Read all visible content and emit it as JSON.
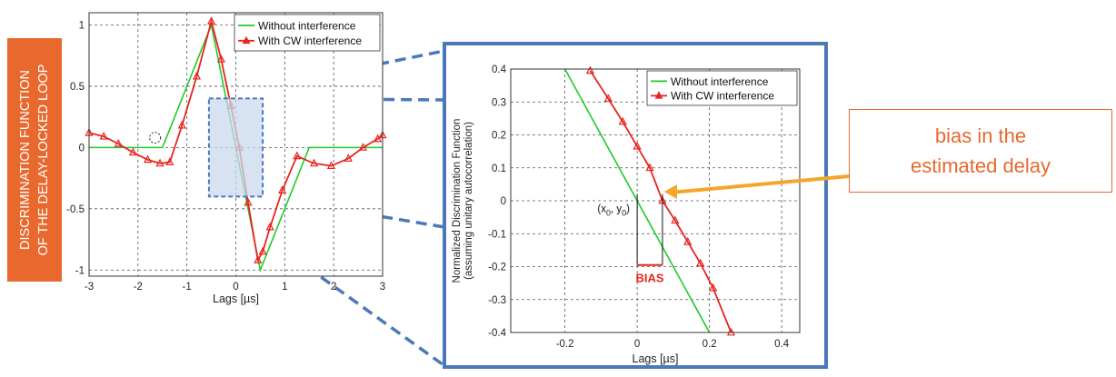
{
  "colors": {
    "banner_bg": "#e8682d",
    "banner_text": "#ffffff",
    "callout": "#e8682d",
    "arrow": "#f4a62a",
    "zoom_frame": "#4b79b8",
    "zoom_region_fill": "#c9d9ee",
    "series_without": "#1fcb2a",
    "series_with": "#e8251f",
    "bias_label": "#e8251f"
  },
  "banner": {
    "line1": "DISCRIMINATION FUNCTION",
    "line2": "OF THE DELAY-LOCKED LOOP"
  },
  "callout": {
    "text": "bias in the\nestimated delay",
    "arrow_icon": "arrow-left-icon"
  },
  "chart_data": [
    {
      "type": "line",
      "xlabel": "Lags [µs]",
      "ylabel": "",
      "xlim": [
        -3,
        3
      ],
      "ylim": [
        -1.05,
        1.1
      ],
      "xticks": [
        "-3",
        "-2",
        "-1",
        "0",
        "1",
        "2",
        "3"
      ],
      "yticks": [
        "-1",
        "-0.5",
        "0",
        "0.5",
        "1"
      ],
      "grid": true,
      "legend": "top-right",
      "series": [
        {
          "name": "Without interference",
          "color": "#1fcb2a",
          "marker": "none",
          "x": [
            -3,
            -1.5,
            -0.5,
            0,
            0.5,
            1.5,
            3
          ],
          "y": [
            0,
            0,
            1,
            0,
            -1,
            0,
            0
          ]
        },
        {
          "name": "With CW interference",
          "color": "#e8251f",
          "marker": "triangle",
          "x": [
            -3,
            -2.7,
            -2.4,
            -2.1,
            -1.8,
            -1.55,
            -1.35,
            -1.1,
            -0.8,
            -0.5,
            -0.3,
            -0.1,
            0.07,
            0.25,
            0.45,
            0.55,
            0.7,
            0.95,
            1.25,
            1.6,
            1.95,
            2.3,
            2.6,
            2.9,
            3
          ],
          "y": [
            0.12,
            0.09,
            0.03,
            -0.04,
            -0.1,
            -0.13,
            -0.12,
            0.18,
            0.58,
            1.03,
            0.72,
            0.34,
            0.0,
            -0.45,
            -0.92,
            -0.85,
            -0.65,
            -0.35,
            -0.07,
            -0.13,
            -0.15,
            -0.09,
            0.0,
            0.07,
            0.1
          ]
        }
      ]
    },
    {
      "type": "line",
      "xlabel": "Lags [µs]",
      "ylabel": "Normalized Discrimination Function\n(assuming unitary autocorrelation)",
      "xlim": [
        -0.35,
        0.45
      ],
      "ylim": [
        -0.4,
        0.4
      ],
      "xticks": [
        "-0.2",
        "0",
        "0.2",
        "0.4"
      ],
      "yticks": [
        "-0.4",
        "-0.3",
        "-0.2",
        "-0.1",
        "0",
        "0.1",
        "0.2",
        "0.3",
        "0.4"
      ],
      "grid": true,
      "legend": "top-right",
      "annotations": [
        "(x",
        "0",
        ", y",
        "0",
        ")",
        "BIAS"
      ],
      "series": [
        {
          "name": "Without interference",
          "color": "#1fcb2a",
          "marker": "none",
          "x": [
            -0.2,
            0.2
          ],
          "y": [
            0.4,
            -0.4
          ]
        },
        {
          "name": "With CW interference",
          "color": "#e8251f",
          "marker": "triangle",
          "x": [
            -0.13,
            -0.08,
            -0.04,
            0.0,
            0.035,
            0.07,
            0.105,
            0.14,
            0.175,
            0.21,
            0.26
          ],
          "y": [
            0.395,
            0.31,
            0.24,
            0.165,
            0.1,
            0.0,
            -0.06,
            -0.125,
            -0.19,
            -0.265,
            -0.4
          ]
        }
      ]
    }
  ]
}
